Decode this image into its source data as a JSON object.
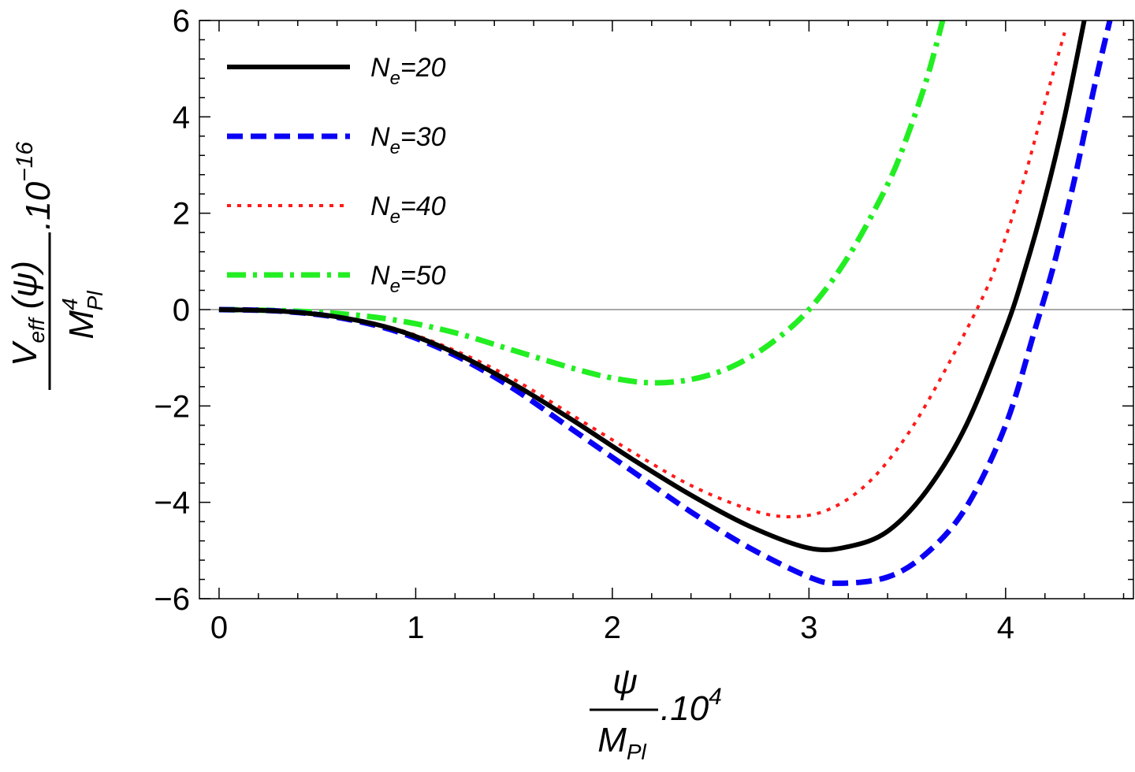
{
  "chart_data": {
    "type": "line",
    "title": "",
    "xlim": [
      -0.1,
      4.65
    ],
    "ylim": [
      -6,
      6
    ],
    "x_ticks": [
      0,
      1,
      2,
      3,
      4
    ],
    "x_tick_labels": [
      "0",
      "1",
      "2",
      "3",
      "4"
    ],
    "y_ticks": [
      -6,
      -4,
      -2,
      0,
      2,
      4,
      6
    ],
    "y_tick_labels": [
      "−6",
      "−4",
      "−2",
      "0",
      "2",
      "4",
      "6"
    ],
    "xlabel": {
      "numerator": "ψ",
      "denominator_base": "M",
      "denominator_sub": "Pl",
      "factor_base": ".10",
      "factor_exp": "4"
    },
    "ylabel": {
      "numerator_base": "V",
      "numerator_sub": "eff",
      "numerator_arg": " (ψ)",
      "denominator_base": "M",
      "denominator_sup": "4",
      "denominator_sub": "Pl",
      "factor_base": ".10",
      "factor_exp": "−16"
    },
    "legend_position": "top-left",
    "series": [
      {
        "name": "N_e=20",
        "label_base": "N",
        "label_sub": "e",
        "label_rest": "=20",
        "color": "#000000",
        "style": "solid",
        "x": [
          0,
          0.3,
          0.6,
          0.9,
          1.2,
          1.5,
          1.8,
          2.1,
          2.4,
          2.7,
          3.0,
          3.2,
          3.4,
          3.6,
          3.8,
          4.0,
          4.1,
          4.2,
          4.3,
          4.4
        ],
        "y": [
          0,
          -0.03,
          -0.15,
          -0.42,
          -0.9,
          -1.55,
          -2.3,
          -3.1,
          -3.85,
          -4.5,
          -4.95,
          -4.92,
          -4.6,
          -3.75,
          -2.4,
          -0.4,
          0.85,
          2.3,
          4.0,
          6.0
        ]
      },
      {
        "name": "N_e=30",
        "label_base": "N",
        "label_sub": "e",
        "label_rest": "=30",
        "color": "#0a00f5",
        "style": "dashed",
        "x": [
          0,
          0.3,
          0.6,
          0.9,
          1.2,
          1.5,
          1.8,
          2.1,
          2.4,
          2.7,
          3.0,
          3.15,
          3.4,
          3.6,
          3.8,
          4.0,
          4.15,
          4.25,
          4.35,
          4.45,
          4.53
        ],
        "y": [
          0,
          -0.03,
          -0.16,
          -0.45,
          -0.95,
          -1.65,
          -2.5,
          -3.35,
          -4.2,
          -4.95,
          -5.55,
          -5.68,
          -5.55,
          -5.05,
          -4.1,
          -2.4,
          -0.4,
          1.0,
          2.7,
          4.6,
          6.0
        ]
      },
      {
        "name": "N_e=40",
        "label_base": "N",
        "label_sub": "e",
        "label_rest": "=40",
        "color": "#ff1a1a",
        "style": "dotted",
        "x": [
          0,
          0.3,
          0.6,
          0.9,
          1.2,
          1.5,
          1.8,
          2.1,
          2.4,
          2.7,
          2.9,
          3.1,
          3.3,
          3.5,
          3.7,
          3.9,
          4.0,
          4.1,
          4.2,
          4.3
        ],
        "y": [
          0,
          -0.03,
          -0.14,
          -0.4,
          -0.85,
          -1.45,
          -2.2,
          -2.95,
          -3.65,
          -4.15,
          -4.3,
          -4.15,
          -3.6,
          -2.6,
          -1.2,
          0.4,
          1.5,
          2.8,
          4.3,
          5.75
        ]
      },
      {
        "name": "N_e=50",
        "label_base": "N",
        "label_sub": "e",
        "label_rest": "=50",
        "color": "#22ee22",
        "style": "dashdot",
        "x": [
          0,
          0.3,
          0.6,
          0.9,
          1.2,
          1.5,
          1.8,
          2.0,
          2.2,
          2.4,
          2.6,
          2.8,
          3.0,
          3.2,
          3.4,
          3.5,
          3.6,
          3.68
        ],
        "y": [
          0,
          -0.02,
          -0.08,
          -0.22,
          -0.48,
          -0.85,
          -1.22,
          -1.42,
          -1.52,
          -1.45,
          -1.2,
          -0.72,
          0.0,
          1.1,
          2.6,
          3.6,
          4.8,
          6.0
        ]
      }
    ]
  }
}
